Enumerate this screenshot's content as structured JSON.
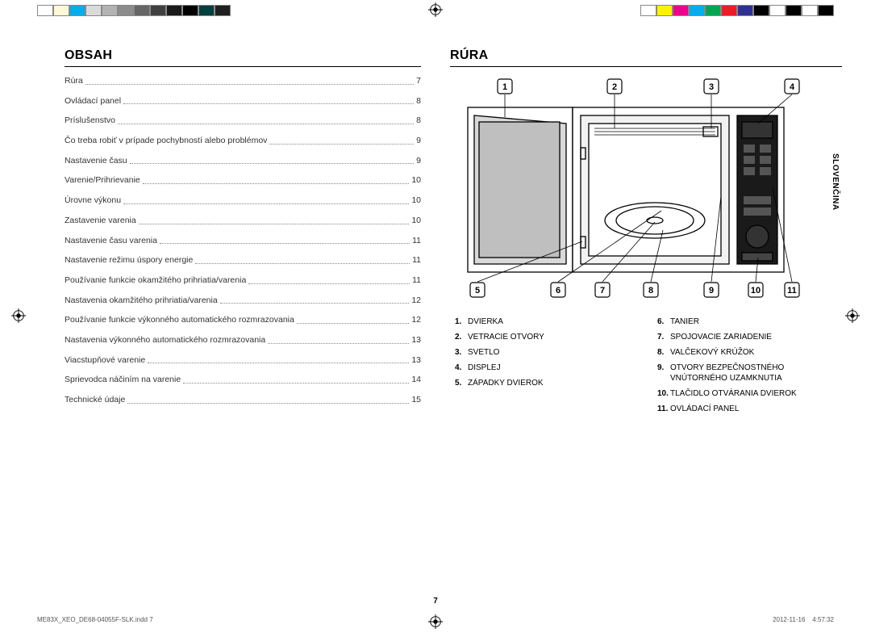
{
  "colorbar_left": [
    "#ffffff",
    "#fff9d8",
    "#00adee",
    "#dadada",
    "#b3b3b3",
    "#8c8c8c",
    "#666666",
    "#404040",
    "#1a1a1a",
    "#000000",
    "#003f3f",
    "#202020"
  ],
  "colorbar_right": [
    "#ffffff",
    "#fff200",
    "#ec008c",
    "#00aeef",
    "#00a651",
    "#ed1c24",
    "#2e3192",
    "#000000",
    "#ffffff",
    "#000000",
    "#ffffff",
    "#000000"
  ],
  "left": {
    "heading": "OBSAH",
    "toc": [
      {
        "label": "Rúra",
        "page": "7"
      },
      {
        "label": "Ovládací panel",
        "page": "8"
      },
      {
        "label": "Príslušenstvo",
        "page": "8"
      },
      {
        "label": "Čo treba robiť v prípade pochybností alebo problémov",
        "page": "9"
      },
      {
        "label": "Nastavenie času",
        "page": "9"
      },
      {
        "label": "Varenie/Prihrievanie",
        "page": "10"
      },
      {
        "label": "Úrovne výkonu",
        "page": "10"
      },
      {
        "label": "Zastavenie varenia",
        "page": "10"
      },
      {
        "label": "Nastavenie času varenia",
        "page": "11"
      },
      {
        "label": "Nastavenie režimu úspory energie",
        "page": "11"
      },
      {
        "label": "Používanie funkcie okamžitého prihriatia/varenia",
        "page": "11"
      },
      {
        "label": "Nastavenia okamžitého prihriatia/varenia",
        "page": "12"
      },
      {
        "label": "Používanie funkcie výkonného automatického rozmrazovania",
        "page": "12"
      },
      {
        "label": "Nastavenia výkonného automatického rozmrazovania",
        "page": "13"
      },
      {
        "label": "Viacstupňové varenie",
        "page": "13"
      },
      {
        "label": "Sprievodca náčiním na varenie",
        "page": "14"
      },
      {
        "label": "Technické údaje",
        "page": "15"
      }
    ]
  },
  "right": {
    "heading": "RÚRA",
    "parts_left": [
      {
        "n": "1.",
        "t": "DVIERKA"
      },
      {
        "n": "2.",
        "t": "VETRACIE OTVORY"
      },
      {
        "n": "3.",
        "t": "SVETLO"
      },
      {
        "n": "4.",
        "t": "DISPLEJ"
      },
      {
        "n": "5.",
        "t": "ZÁPADKY DVIEROK"
      }
    ],
    "parts_right": [
      {
        "n": "6.",
        "t": "TANIER"
      },
      {
        "n": "7.",
        "t": "SPOJOVACIE ZARIADENIE"
      },
      {
        "n": "8.",
        "t": "VALČEKOVÝ KRÚŽOK"
      },
      {
        "n": "9.",
        "t": "OTVORY BEZPEČNOSTNÉHO VNÚTORNÉHO UZAMKNUTIA"
      },
      {
        "n": "10.",
        "t": "TLAČIDLO OTVÁRANIA DVIEROK"
      },
      {
        "n": "11.",
        "t": "OVLÁDACÍ PANEL"
      }
    ],
    "callouts_top": [
      "1",
      "2",
      "3",
      "4"
    ],
    "callouts_bot": [
      "5",
      "6",
      "7",
      "8",
      "9",
      "10",
      "11"
    ]
  },
  "vtext": "SLOVENČINA",
  "page_number": "7",
  "footer_left": "ME83X_XEO_DE68-04055F-SLK.indd   7",
  "footer_right": "2012-11-16     4:57:32"
}
